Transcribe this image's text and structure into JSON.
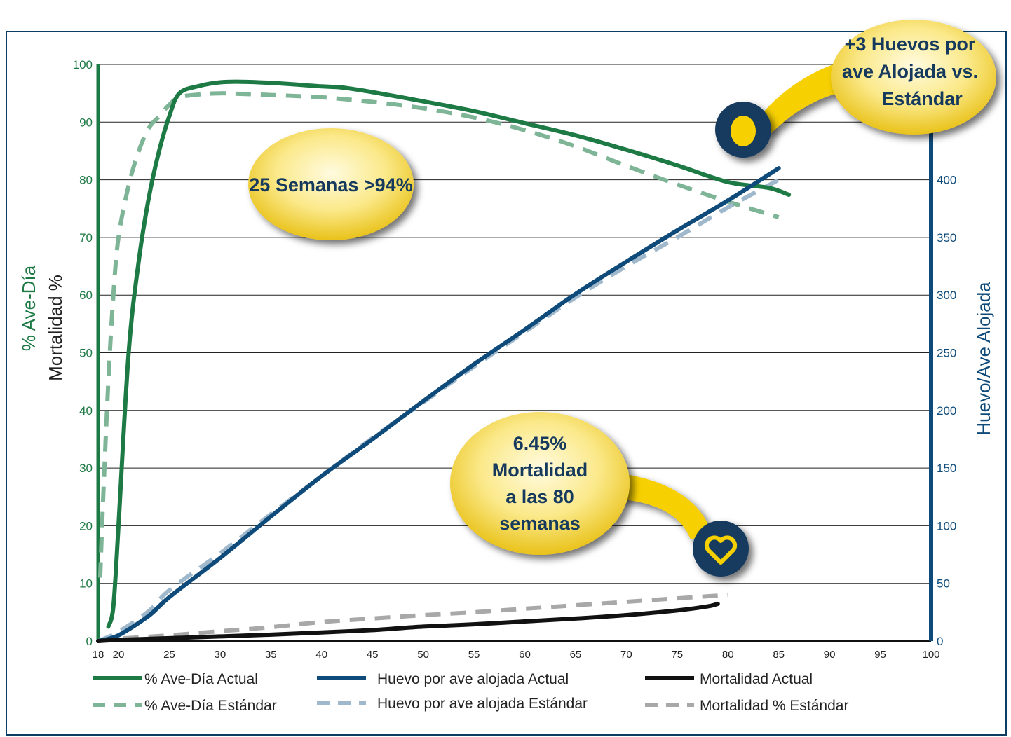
{
  "chart_data": {
    "type": "line",
    "ylabel_left_1": "% Ave-Día",
    "ylabel_left_2": "Mortalidad %",
    "ylabel_right": "Huevo/Ave Alojada",
    "xlim": [
      18,
      100
    ],
    "ylim_left": [
      0,
      100
    ],
    "ylim_right": [
      0,
      500
    ],
    "x_ticks": [
      18,
      20,
      25,
      30,
      35,
      40,
      45,
      50,
      55,
      60,
      65,
      70,
      75,
      80,
      85,
      90,
      95,
      100
    ],
    "y_ticks_left": [
      0,
      10,
      20,
      30,
      40,
      50,
      60,
      70,
      80,
      90,
      100
    ],
    "y_ticks_right": [
      0,
      50,
      100,
      150,
      200,
      250,
      300,
      350,
      400
    ],
    "grid": "horizontal",
    "legend_position": "bottom",
    "series": [
      {
        "name": "% Ave-Día Actual",
        "axis": "left",
        "style": "solid",
        "color": "#1e7a45",
        "x": [
          19,
          19.5,
          20,
          21,
          22,
          23,
          24,
          25,
          26,
          28,
          30,
          32,
          35,
          40,
          42,
          45,
          50,
          55,
          60,
          65,
          70,
          75,
          80,
          84,
          86
        ],
        "y": [
          2.5,
          6,
          20,
          50,
          66,
          77,
          85,
          91,
          95,
          96.3,
          96.9,
          97,
          96.8,
          96.2,
          96,
          95.2,
          93.6,
          91.9,
          89.8,
          87.7,
          85.2,
          82.5,
          79.6,
          78.6,
          77.4
        ]
      },
      {
        "name": "% Ave-Día Estándar",
        "axis": "left",
        "style": "dashed",
        "color": "#7fb597",
        "x": [
          18.2,
          18.5,
          19,
          19.5,
          20,
          21,
          22,
          23,
          24,
          25,
          26,
          28,
          30,
          32,
          35,
          40,
          45,
          50,
          55,
          60,
          65,
          70,
          75,
          80,
          85
        ],
        "y": [
          11,
          25,
          45,
          60,
          70,
          79,
          85,
          89,
          91,
          93,
          94.3,
          94.8,
          95,
          94.9,
          94.7,
          94.3,
          93.5,
          92.4,
          90.8,
          88.6,
          85.8,
          82.4,
          79.2,
          76.2,
          73.5
        ]
      },
      {
        "name": "Huevo por ave alojada Actual",
        "axis": "right",
        "style": "solid",
        "color": "#0e4b7a",
        "x": [
          18,
          20,
          23,
          25,
          30,
          35,
          40,
          45,
          50,
          55,
          60,
          65,
          70,
          75,
          80,
          85
        ],
        "y": [
          0,
          5,
          22,
          38,
          72,
          108,
          143,
          175,
          208,
          240,
          270,
          301,
          329,
          356,
          382,
          410
        ]
      },
      {
        "name": "Huevo por ave alojada Estándar",
        "axis": "right",
        "style": "dashed",
        "color": "#9fb8cc",
        "x": [
          18,
          20,
          23,
          25,
          30,
          35,
          40,
          45,
          50,
          55,
          60,
          65,
          70,
          75,
          80,
          85
        ],
        "y": [
          0,
          8,
          26,
          44,
          76,
          110,
          143,
          176,
          207,
          238,
          268,
          298,
          325,
          350,
          376,
          400
        ]
      },
      {
        "name": "Mortalidad Actual",
        "axis": "left",
        "style": "solid",
        "color": "#111111",
        "x": [
          18,
          20,
          25,
          30,
          35,
          40,
          45,
          50,
          55,
          60,
          65,
          70,
          75,
          78,
          79
        ],
        "y": [
          0,
          0.2,
          0.5,
          0.8,
          1.1,
          1.5,
          1.9,
          2.5,
          2.9,
          3.4,
          3.9,
          4.5,
          5.3,
          6.0,
          6.45
        ]
      },
      {
        "name": "Mortalidad % Estándar",
        "axis": "left",
        "style": "dashed",
        "color": "#a8a8a8",
        "x": [
          18,
          20,
          25,
          30,
          35,
          40,
          45,
          50,
          55,
          60,
          65,
          70,
          75,
          80
        ],
        "y": [
          0,
          0.4,
          1.0,
          1.7,
          2.4,
          3.3,
          3.9,
          4.5,
          5.0,
          5.6,
          6.2,
          6.8,
          7.4,
          8.0
        ]
      }
    ],
    "annotations": [
      {
        "id": "peak",
        "lines": [
          "25 Semanas >94%"
        ]
      },
      {
        "id": "eggs",
        "lines": [
          "+3 Huevos por",
          "ave Alojada vs.",
          "Estándar"
        ]
      },
      {
        "id": "mortality",
        "lines": [
          "6.45%",
          "Mortalidad",
          "a las 80",
          "semanas"
        ]
      }
    ]
  },
  "colors": {
    "green": "#1e7a45",
    "navy": "#0e4b7a",
    "gold": "#f6d000",
    "frame": "#0e3d63"
  },
  "icons": {
    "egg": "egg-icon",
    "heart": "heart-icon"
  }
}
